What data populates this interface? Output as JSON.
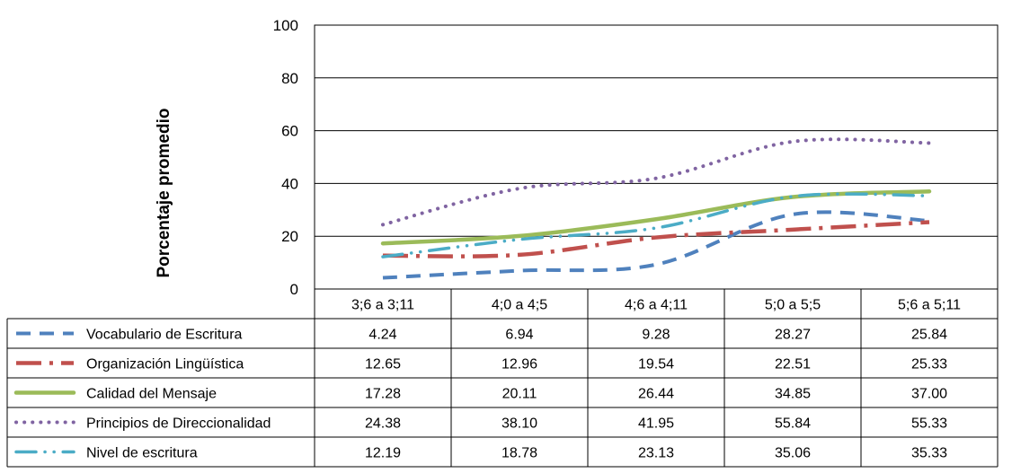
{
  "chart_data": {
    "type": "line",
    "title": "",
    "xlabel": "",
    "ylabel": "Porcentaje promedio",
    "ylim": [
      0,
      100
    ],
    "yticks": [
      "0",
      "20",
      "40",
      "60",
      "80",
      "100"
    ],
    "grid": true,
    "categories": [
      "3;6 a 3;11",
      "4;0 a 4;5",
      "4;6 a 4;11",
      "5;0 a 5;5",
      "5;6 a 5;11"
    ],
    "legend_placement": "data-table",
    "series": [
      {
        "name": "Vocabulario de Escritura",
        "values": [
          4.24,
          6.94,
          9.28,
          28.27,
          25.84
        ],
        "labels": [
          "4.24",
          "6.94",
          "9.28",
          "28.27",
          "25.84"
        ],
        "color": "#4f81bd",
        "style": "dash"
      },
      {
        "name": "Organización Lingüística",
        "values": [
          12.65,
          12.96,
          19.54,
          22.51,
          25.33
        ],
        "labels": [
          "12.65",
          "12.96",
          "19.54",
          "22.51",
          "25.33"
        ],
        "color": "#c0504d",
        "style": "longdash-dot"
      },
      {
        "name": "Calidad del Mensaje",
        "values": [
          17.28,
          20.11,
          26.44,
          34.85,
          37.0
        ],
        "labels": [
          "17.28",
          "20.11",
          "26.44",
          "34.85",
          "37.00"
        ],
        "color": "#9bbb59",
        "style": "solid"
      },
      {
        "name": "Principios de Direccionalidad",
        "values": [
          24.38,
          38.1,
          41.95,
          55.84,
          55.33
        ],
        "labels": [
          "24.38",
          "38.10",
          "41.95",
          "55.84",
          "55.33"
        ],
        "color": "#8064a2",
        "style": "dot"
      },
      {
        "name": "Nivel de escritura",
        "values": [
          12.19,
          18.78,
          23.13,
          35.06,
          35.33
        ],
        "labels": [
          "12.19",
          "18.78",
          "23.13",
          "35.06",
          "35.33"
        ],
        "color": "#4bacc6",
        "style": "dashdot"
      }
    ]
  }
}
